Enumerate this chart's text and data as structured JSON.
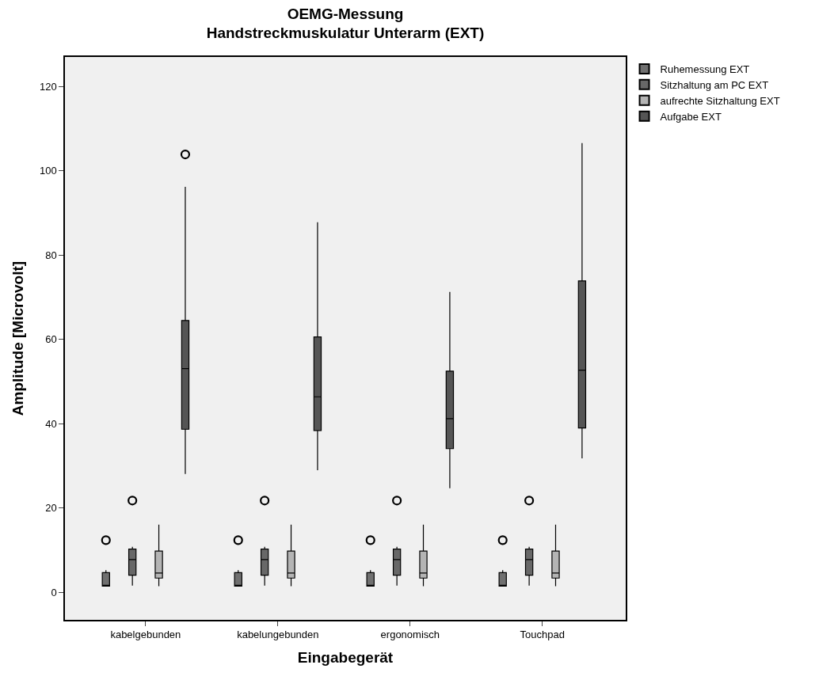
{
  "chart_data": {
    "type": "box",
    "title": "OEMG-Messung\nHandstreckmuskulatur Unterarm (EXT)",
    "xlabel": "Eingabegerät",
    "ylabel": "Amplitude [Microvolt]",
    "categories": [
      "kabelgebunden",
      "kabelungebunden",
      "ergonomisch",
      "Touchpad"
    ],
    "ylim": [
      -6.5,
      127
    ],
    "yticks": [
      0,
      20,
      40,
      60,
      80,
      100,
      120
    ],
    "grid": false,
    "legend": "top right",
    "series": [
      {
        "name": "Ruhemessung EXT",
        "color": "#707070",
        "boxes": [
          {
            "low": 1.5,
            "q1": 1.5,
            "median": 1.6,
            "q3": 4.7,
            "high": 5.3,
            "outliers": [
              12.4
            ]
          },
          {
            "low": 1.5,
            "q1": 1.5,
            "median": 1.6,
            "q3": 4.7,
            "high": 5.3,
            "outliers": [
              12.4
            ]
          },
          {
            "low": 1.5,
            "q1": 1.5,
            "median": 1.6,
            "q3": 4.7,
            "high": 5.3,
            "outliers": [
              12.4
            ]
          },
          {
            "low": 1.5,
            "q1": 1.5,
            "median": 1.6,
            "q3": 4.7,
            "high": 5.3,
            "outliers": [
              12.4
            ]
          }
        ]
      },
      {
        "name": "Sitzhaltung am PC EXT",
        "color": "#686868",
        "boxes": [
          {
            "low": 1.6,
            "q1": 4.1,
            "median": 7.8,
            "q3": 10.3,
            "high": 10.8,
            "outliers": [
              21.8
            ]
          },
          {
            "low": 1.6,
            "q1": 4.1,
            "median": 7.8,
            "q3": 10.3,
            "high": 10.8,
            "outliers": [
              21.8
            ]
          },
          {
            "low": 1.6,
            "q1": 4.1,
            "median": 7.8,
            "q3": 10.3,
            "high": 10.8,
            "outliers": [
              21.8
            ]
          },
          {
            "low": 1.6,
            "q1": 4.1,
            "median": 7.8,
            "q3": 10.3,
            "high": 10.8,
            "outliers": [
              21.8
            ]
          }
        ]
      },
      {
        "name": "aufrechte Sitzhaltung EXT",
        "color": "#b4b4b4",
        "boxes": [
          {
            "low": 1.5,
            "q1": 3.4,
            "median": 4.6,
            "q3": 9.8,
            "high": 16.1
          },
          {
            "low": 1.5,
            "q1": 3.4,
            "median": 4.6,
            "q3": 9.8,
            "high": 16.1
          },
          {
            "low": 1.5,
            "q1": 3.4,
            "median": 4.6,
            "q3": 9.8,
            "high": 16.1
          },
          {
            "low": 1.5,
            "q1": 3.4,
            "median": 4.6,
            "q3": 9.8,
            "high": 16.1
          }
        ]
      },
      {
        "name": "Aufgabe EXT",
        "color": "#555555",
        "boxes": [
          {
            "low": 28.1,
            "q1": 38.7,
            "median": 53.1,
            "q3": 64.5,
            "high": 96.2,
            "outliers": [
              103.9
            ]
          },
          {
            "low": 29.0,
            "q1": 38.4,
            "median": 46.4,
            "q3": 60.6,
            "high": 87.8
          },
          {
            "low": 24.7,
            "q1": 34.1,
            "median": 41.2,
            "q3": 52.5,
            "high": 71.3
          },
          {
            "low": 31.8,
            "q1": 39.0,
            "median": 52.7,
            "q3": 73.9,
            "high": 106.6
          }
        ]
      }
    ]
  }
}
